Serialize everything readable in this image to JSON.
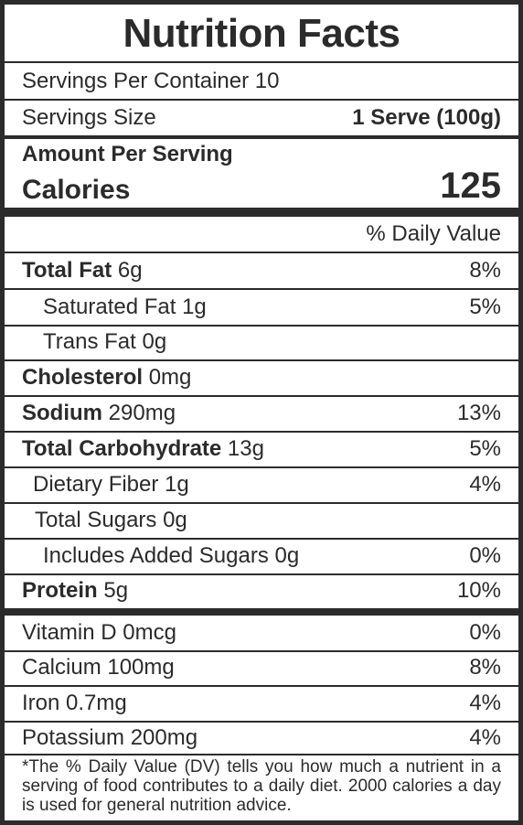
{
  "title": "Nutrition Facts",
  "servings_per_container": "Servings Per Container 10",
  "serving_size_label": "Servings Size",
  "serving_size_value": "1 Serve (100g)",
  "amount_per_serving": "Amount Per Serving",
  "calories_label": "Calories",
  "calories_value": "125",
  "daily_value_header": "% Daily Value",
  "nutrients": {
    "total_fat": {
      "name": "Total Fat",
      "amount": "6g",
      "dv": "8%"
    },
    "saturated_fat": {
      "name": "Saturated Fat 1g",
      "dv": "5%"
    },
    "trans_fat": {
      "name": "Trans Fat 0g"
    },
    "cholesterol": {
      "name": "Cholesterol",
      "amount": "0mg"
    },
    "sodium": {
      "name": "Sodium",
      "amount": "290mg",
      "dv": "13%"
    },
    "total_carbohydrate": {
      "name": "Total Carbohydrate",
      "amount": "13g",
      "dv": "5%"
    },
    "dietary_fiber": {
      "name": "Dietary Fiber 1g",
      "dv": "4%"
    },
    "total_sugars": {
      "name": "Total Sugars 0g"
    },
    "added_sugars": {
      "name": "Includes Added Sugars 0g",
      "dv": "0%"
    },
    "protein": {
      "name": "Protein",
      "amount": "5g",
      "dv": "10%"
    }
  },
  "vitamins": {
    "vitamin_d": {
      "name": "Vitamin D 0mcg",
      "dv": "0%"
    },
    "calcium": {
      "name": "Calcium 100mg",
      "dv": "8%"
    },
    "iron": {
      "name": "Iron 0.7mg",
      "dv": "4%"
    },
    "potassium": {
      "name": "Potassium 200mg",
      "dv": "4%"
    }
  },
  "footnote": "*The % Daily Value (DV) tells you how much a nutrient in a serving of food contributes to a daily diet. 2000 calories a day is used for general nutrition advice."
}
